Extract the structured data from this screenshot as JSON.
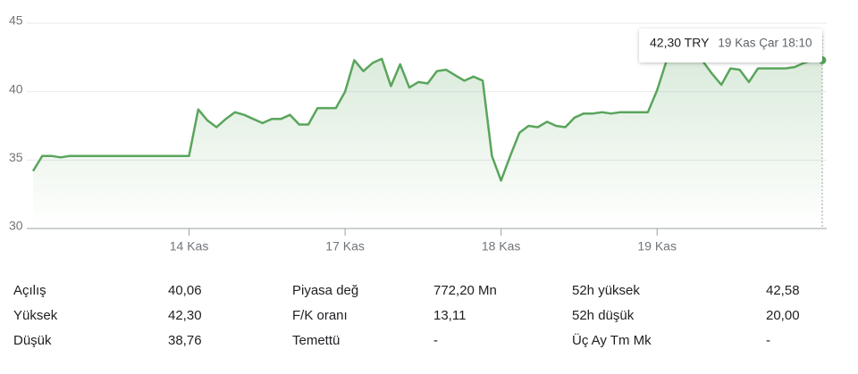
{
  "chart_data": {
    "type": "line",
    "categories": [
      null,
      null,
      null,
      null,
      null,
      null,
      null,
      null,
      null,
      null,
      null,
      null,
      null,
      null,
      null,
      null,
      null,
      "14 Kas",
      null,
      null,
      null,
      null,
      null,
      null,
      null,
      null,
      null,
      null,
      null,
      null,
      null,
      null,
      null,
      null,
      "17 Kas",
      null,
      null,
      null,
      null,
      null,
      null,
      null,
      null,
      null,
      null,
      null,
      null,
      null,
      null,
      null,
      null,
      "18 Kas",
      null,
      null,
      null,
      null,
      null,
      null,
      null,
      null,
      null,
      null,
      null,
      null,
      null,
      null,
      null,
      null,
      "19 Kas",
      null,
      null,
      null,
      null,
      null,
      null,
      null,
      null,
      null,
      null,
      null,
      null,
      null,
      null,
      null,
      null,
      null,
      null
    ],
    "series": [
      {
        "color": "#5aa55c",
        "values": [
          34.2,
          35.3,
          35.3,
          35.2,
          35.3,
          35.3,
          35.3,
          35.3,
          35.3,
          35.3,
          35.3,
          35.3,
          35.3,
          35.3,
          35.3,
          35.3,
          35.3,
          35.3,
          38.7,
          37.9,
          37.4,
          38.0,
          38.5,
          38.3,
          38.0,
          37.7,
          38.0,
          38.0,
          38.3,
          37.6,
          37.6,
          38.8,
          38.8,
          38.8,
          40.0,
          42.3,
          41.5,
          42.1,
          42.4,
          40.4,
          42.0,
          40.3,
          40.7,
          40.6,
          41.5,
          41.6,
          41.2,
          40.8,
          41.1,
          40.8,
          35.3,
          33.5,
          35.3,
          37.0,
          37.5,
          37.4,
          37.8,
          37.5,
          37.4,
          38.1,
          38.4,
          38.4,
          38.5,
          38.4,
          38.5,
          38.5,
          38.5,
          38.5,
          40.1,
          42.2,
          42.4,
          42.4,
          42.3,
          42.2,
          41.3,
          40.5,
          41.7,
          41.6,
          40.7,
          41.7,
          41.7,
          41.7,
          41.7,
          41.8,
          42.1,
          42.3,
          42.3
        ]
      }
    ],
    "ylim": [
      30,
      45
    ],
    "yticks": [
      30,
      35,
      40,
      45
    ],
    "grid": true,
    "tooltip": {
      "price": "42,30 TRY",
      "time": "19 Kas Çar 18:10"
    }
  },
  "stats": [
    [
      [
        "Açılış",
        "40,06"
      ],
      [
        "Piyasa değ",
        "772,20 Mn"
      ],
      [
        "52h yüksek",
        "42,58"
      ]
    ],
    [
      [
        "Yüksek",
        "42,30"
      ],
      [
        "F/K oranı",
        "13,11"
      ],
      [
        "52h düşük",
        "20,00"
      ]
    ],
    [
      [
        "Düşük",
        "38,76"
      ],
      [
        "Temettü",
        "-"
      ],
      [
        "Üç Ay Tm Mk",
        "-"
      ]
    ]
  ]
}
